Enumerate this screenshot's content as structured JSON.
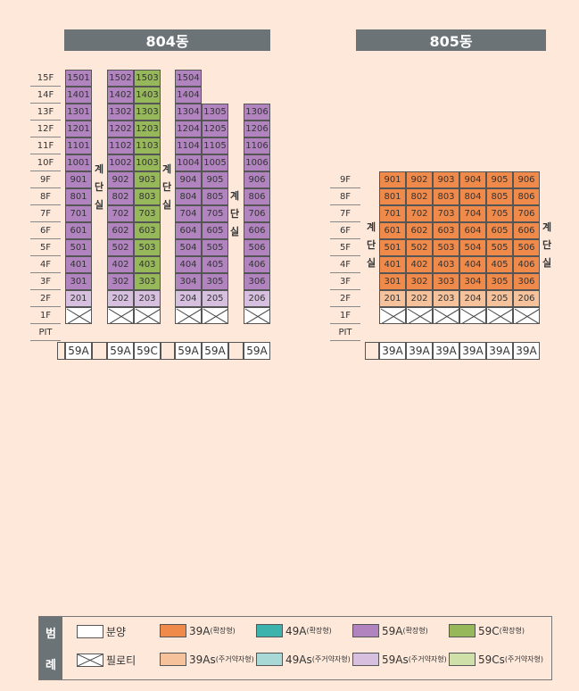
{
  "buildings": {
    "b804": {
      "title": "804동"
    },
    "b805": {
      "title": "805동"
    }
  },
  "stair_text": [
    "계",
    "단",
    "실"
  ],
  "floors804": [
    "15F",
    "14F",
    "13F",
    "12F",
    "11F",
    "10F",
    "9F",
    "8F",
    "7F",
    "6F",
    "5F",
    "4F",
    "3F",
    "2F",
    "1F",
    "PIT"
  ],
  "floors805": [
    "9F",
    "8F",
    "7F",
    "6F",
    "5F",
    "4F",
    "3F",
    "2F",
    "1F",
    "PIT"
  ],
  "types804": [
    "59A",
    "59A",
    "59C",
    "59A",
    "59A",
    "59A"
  ],
  "types805": [
    "39A",
    "39A",
    "39A",
    "39A",
    "39A",
    "39A"
  ],
  "units804": [
    {
      "col": "1",
      "units": [
        "1501",
        "1401",
        "1301",
        "1201",
        "1101",
        "1001",
        "901",
        "801",
        "701",
        "601",
        "501",
        "401",
        "301",
        "201"
      ],
      "type": "59A",
      "top_floor": 15
    },
    {
      "col": "2",
      "units": [
        "1502",
        "1402",
        "1302",
        "1202",
        "1102",
        "1002",
        "902",
        "802",
        "702",
        "602",
        "502",
        "402",
        "302",
        "202"
      ],
      "type": "59A",
      "top_floor": 15
    },
    {
      "col": "3",
      "units": [
        "1503",
        "1403",
        "1303",
        "1203",
        "1103",
        "1003",
        "903",
        "803",
        "703",
        "603",
        "503",
        "403",
        "303",
        "203"
      ],
      "type": "59C",
      "top_floor": 15
    },
    {
      "col": "4",
      "units": [
        "1504",
        "1404",
        "1304",
        "1204",
        "1104",
        "1004",
        "904",
        "804",
        "704",
        "604",
        "504",
        "404",
        "304",
        "204"
      ],
      "type": "59A",
      "top_floor": 15
    },
    {
      "col": "5",
      "units": [
        "1305",
        "1205",
        "1105",
        "1005",
        "905",
        "805",
        "705",
        "605",
        "505",
        "405",
        "305",
        "205"
      ],
      "type": "59A",
      "top_floor": 13
    },
    {
      "col": "6",
      "units": [
        "1306",
        "1206",
        "1106",
        "1006",
        "906",
        "806",
        "706",
        "606",
        "506",
        "406",
        "306",
        "206"
      ],
      "type": "59A",
      "top_floor": 13
    }
  ],
  "units805": [
    {
      "col": "1",
      "units": [
        "901",
        "801",
        "701",
        "601",
        "501",
        "401",
        "301",
        "201"
      ]
    },
    {
      "col": "2",
      "units": [
        "902",
        "802",
        "702",
        "602",
        "502",
        "402",
        "302",
        "202"
      ]
    },
    {
      "col": "3",
      "units": [
        "903",
        "803",
        "703",
        "603",
        "503",
        "403",
        "303",
        "203"
      ]
    },
    {
      "col": "4",
      "units": [
        "904",
        "804",
        "704",
        "604",
        "504",
        "404",
        "304",
        "204"
      ]
    },
    {
      "col": "5",
      "units": [
        "905",
        "805",
        "705",
        "605",
        "505",
        "405",
        "305",
        "205"
      ]
    },
    {
      "col": "6",
      "units": [
        "906",
        "806",
        "706",
        "606",
        "506",
        "406",
        "306",
        "206"
      ]
    }
  ],
  "legend": {
    "head": [
      "범",
      "례"
    ],
    "items": [
      {
        "label": "분양",
        "sub": "",
        "color": "#ffffff",
        "pilotis": false
      },
      {
        "label": "필로티",
        "sub": "",
        "color": "#ffffff",
        "pilotis": true
      },
      {
        "label": "39A",
        "sub": "(확장형)",
        "color": "#f08a4b",
        "pilotis": false
      },
      {
        "label": "39As",
        "sub": "(주거약자형)",
        "color": "#f6c29b",
        "pilotis": false
      },
      {
        "label": "49A",
        "sub": "(확장형)",
        "color": "#3cb3ad",
        "pilotis": false
      },
      {
        "label": "49As",
        "sub": "(주거약자형)",
        "color": "#a9d9d6",
        "pilotis": false
      },
      {
        "label": "59A",
        "sub": "(확장형)",
        "color": "#b184c0",
        "pilotis": false
      },
      {
        "label": "59As",
        "sub": "(주거약자형)",
        "color": "#d7bfe0",
        "pilotis": false
      },
      {
        "label": "59C",
        "sub": "(확장형)",
        "color": "#96b75a",
        "pilotis": false
      },
      {
        "label": "59Cs",
        "sub": "(주거약자형)",
        "color": "#cfe0a8",
        "pilotis": false
      }
    ]
  }
}
